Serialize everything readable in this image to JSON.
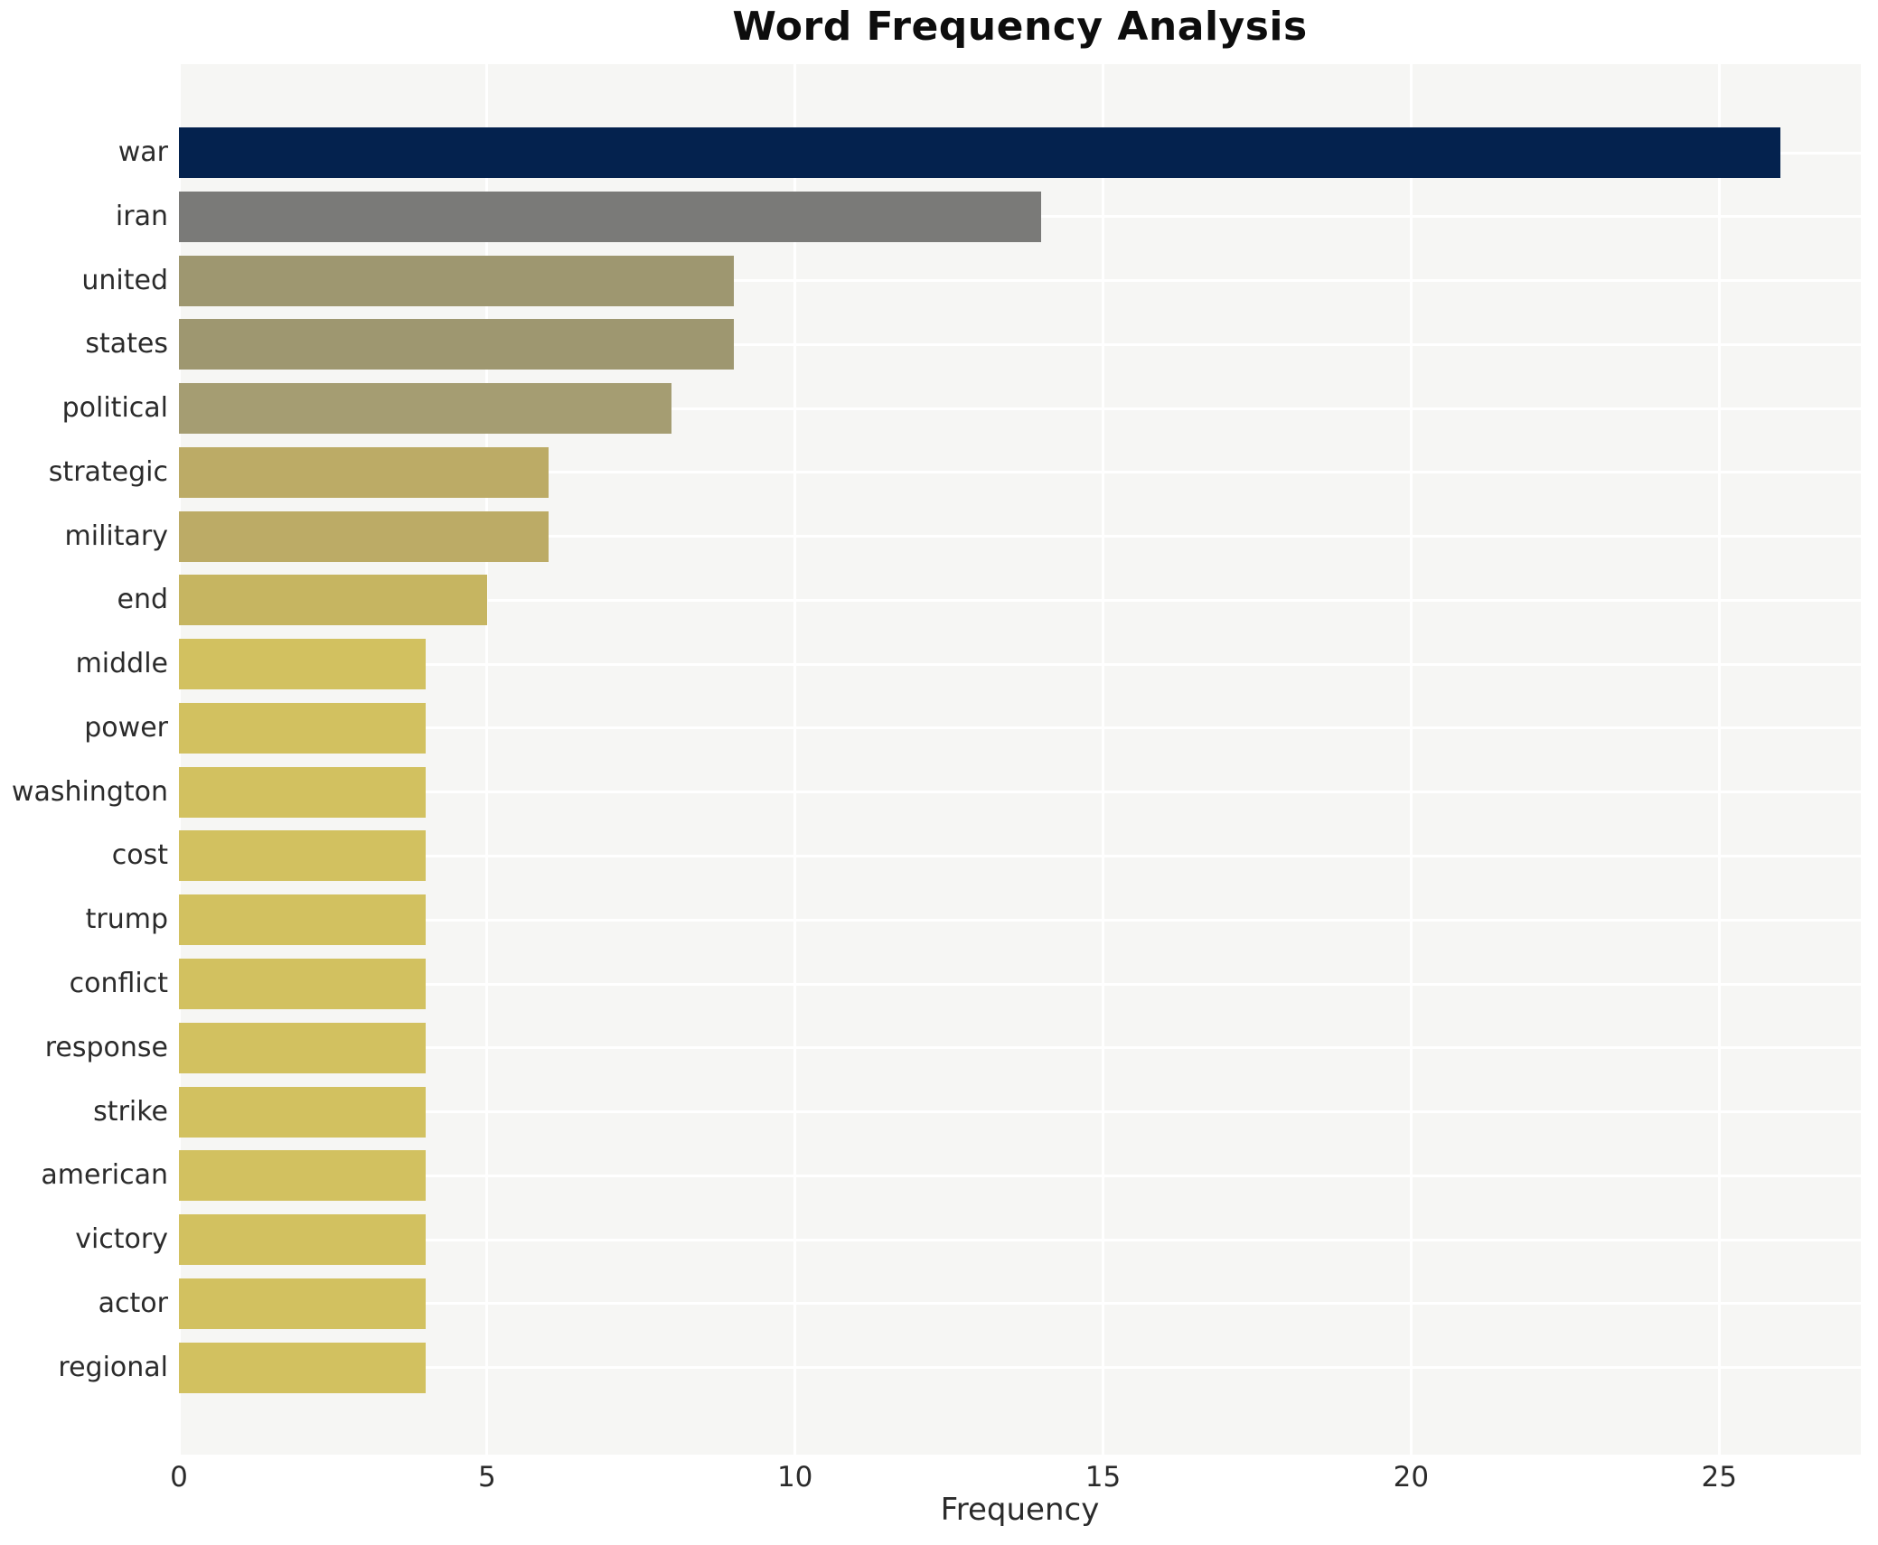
{
  "chart_data": {
    "type": "bar",
    "orientation": "horizontal",
    "title": "Word Frequency Analysis",
    "xlabel": "Frequency",
    "ylabel": "",
    "x_ticks": [
      0,
      5,
      10,
      15,
      20,
      25
    ],
    "xlim": [
      0,
      27.3
    ],
    "grid": true,
    "legend": false,
    "categories": [
      "war",
      "iran",
      "united",
      "states",
      "political",
      "strategic",
      "military",
      "end",
      "middle",
      "power",
      "washington",
      "cost",
      "trump",
      "conflict",
      "response",
      "strike",
      "american",
      "victory",
      "actor",
      "regional"
    ],
    "values": [
      26,
      14,
      9,
      9,
      8,
      6,
      6,
      5,
      4,
      4,
      4,
      4,
      4,
      4,
      4,
      4,
      4,
      4,
      4,
      4
    ],
    "bar_colors": [
      "#04224e",
      "#7a7a78",
      "#9e9770",
      "#9e9770",
      "#a59d72",
      "#bcab66",
      "#bcab66",
      "#c6b561",
      "#d2c160",
      "#d2c160",
      "#d2c160",
      "#d2c160",
      "#d2c160",
      "#d2c160",
      "#d2c160",
      "#d2c160",
      "#d2c160",
      "#d2c160",
      "#d2c160",
      "#d2c160"
    ]
  },
  "colors": {
    "figure_background": "#ffffff",
    "plot_background": "#f6f6f4",
    "gridline": "#ffffff",
    "title_text": "#0d0d0d",
    "label_text": "#2b2b2b"
  }
}
